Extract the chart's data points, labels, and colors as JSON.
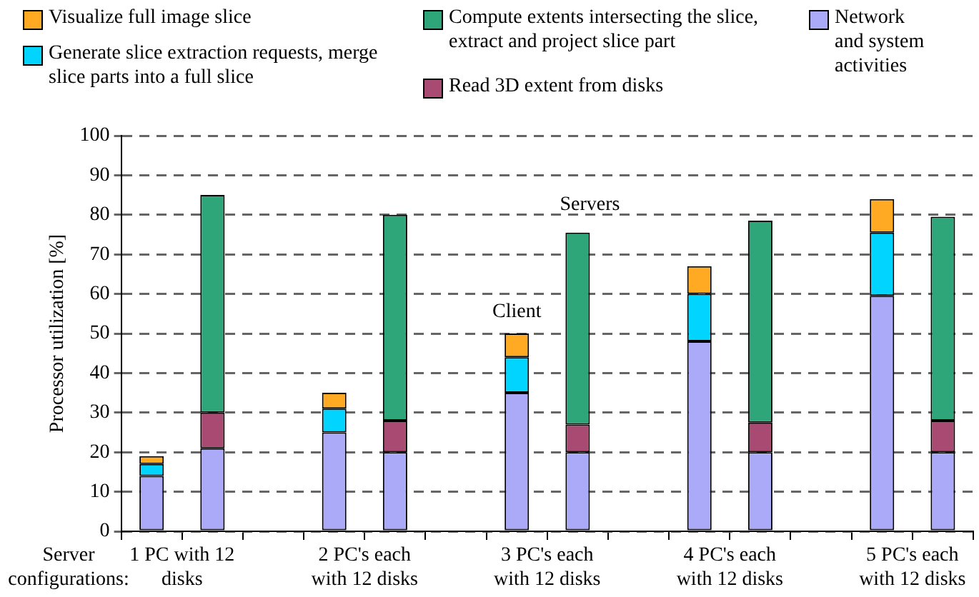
{
  "chart_data": {
    "type": "bar",
    "stacked": true,
    "ylabel": "Processor utilization [%]",
    "categories": [
      "1 PC with 12 disks",
      null,
      null,
      "2 PC's each with 12 disks",
      null,
      null,
      "3 PC's each with 12 disks",
      null,
      null,
      "4 PC's each with 12 disks",
      null,
      null,
      "5 PC's each with 12 disks",
      null
    ],
    "series": [
      {
        "name": "Network and system activities",
        "color": "#aaaaf8",
        "values": [
          14,
          21,
          null,
          25,
          20,
          null,
          35,
          20,
          null,
          48,
          20,
          null,
          59.5,
          20
        ]
      },
      {
        "name": "Read 3D extent from disks",
        "color": "#a84a72",
        "values": [
          null,
          9,
          null,
          null,
          8,
          null,
          null,
          7,
          null,
          null,
          7.5,
          null,
          null,
          8
        ]
      },
      {
        "name": "Compute extents intersecting the slice, extract and project slice part",
        "color": "#2ea67a",
        "values": [
          null,
          55,
          null,
          null,
          52,
          null,
          null,
          48.5,
          null,
          null,
          51,
          null,
          null,
          51.5
        ]
      },
      {
        "name": "Generate slice extraction requests, merge slice parts into a full slice",
        "color": "#00d4ff",
        "values": [
          3,
          null,
          null,
          6,
          null,
          null,
          9,
          null,
          null,
          12,
          null,
          null,
          16,
          null
        ]
      },
      {
        "name": "Visualize full image slice",
        "color": "#ffaa22",
        "values": [
          2,
          null,
          null,
          4,
          null,
          null,
          6,
          null,
          null,
          7,
          null,
          null,
          8.5,
          null
        ]
      }
    ],
    "ylim": [
      0,
      100
    ],
    "yticks": [
      0,
      10,
      20,
      30,
      40,
      50,
      60,
      70,
      80,
      90,
      100
    ],
    "grid": "y",
    "legend": "top",
    "annotations": [
      "Server configurations:",
      "Client",
      "Servers"
    ]
  }
}
